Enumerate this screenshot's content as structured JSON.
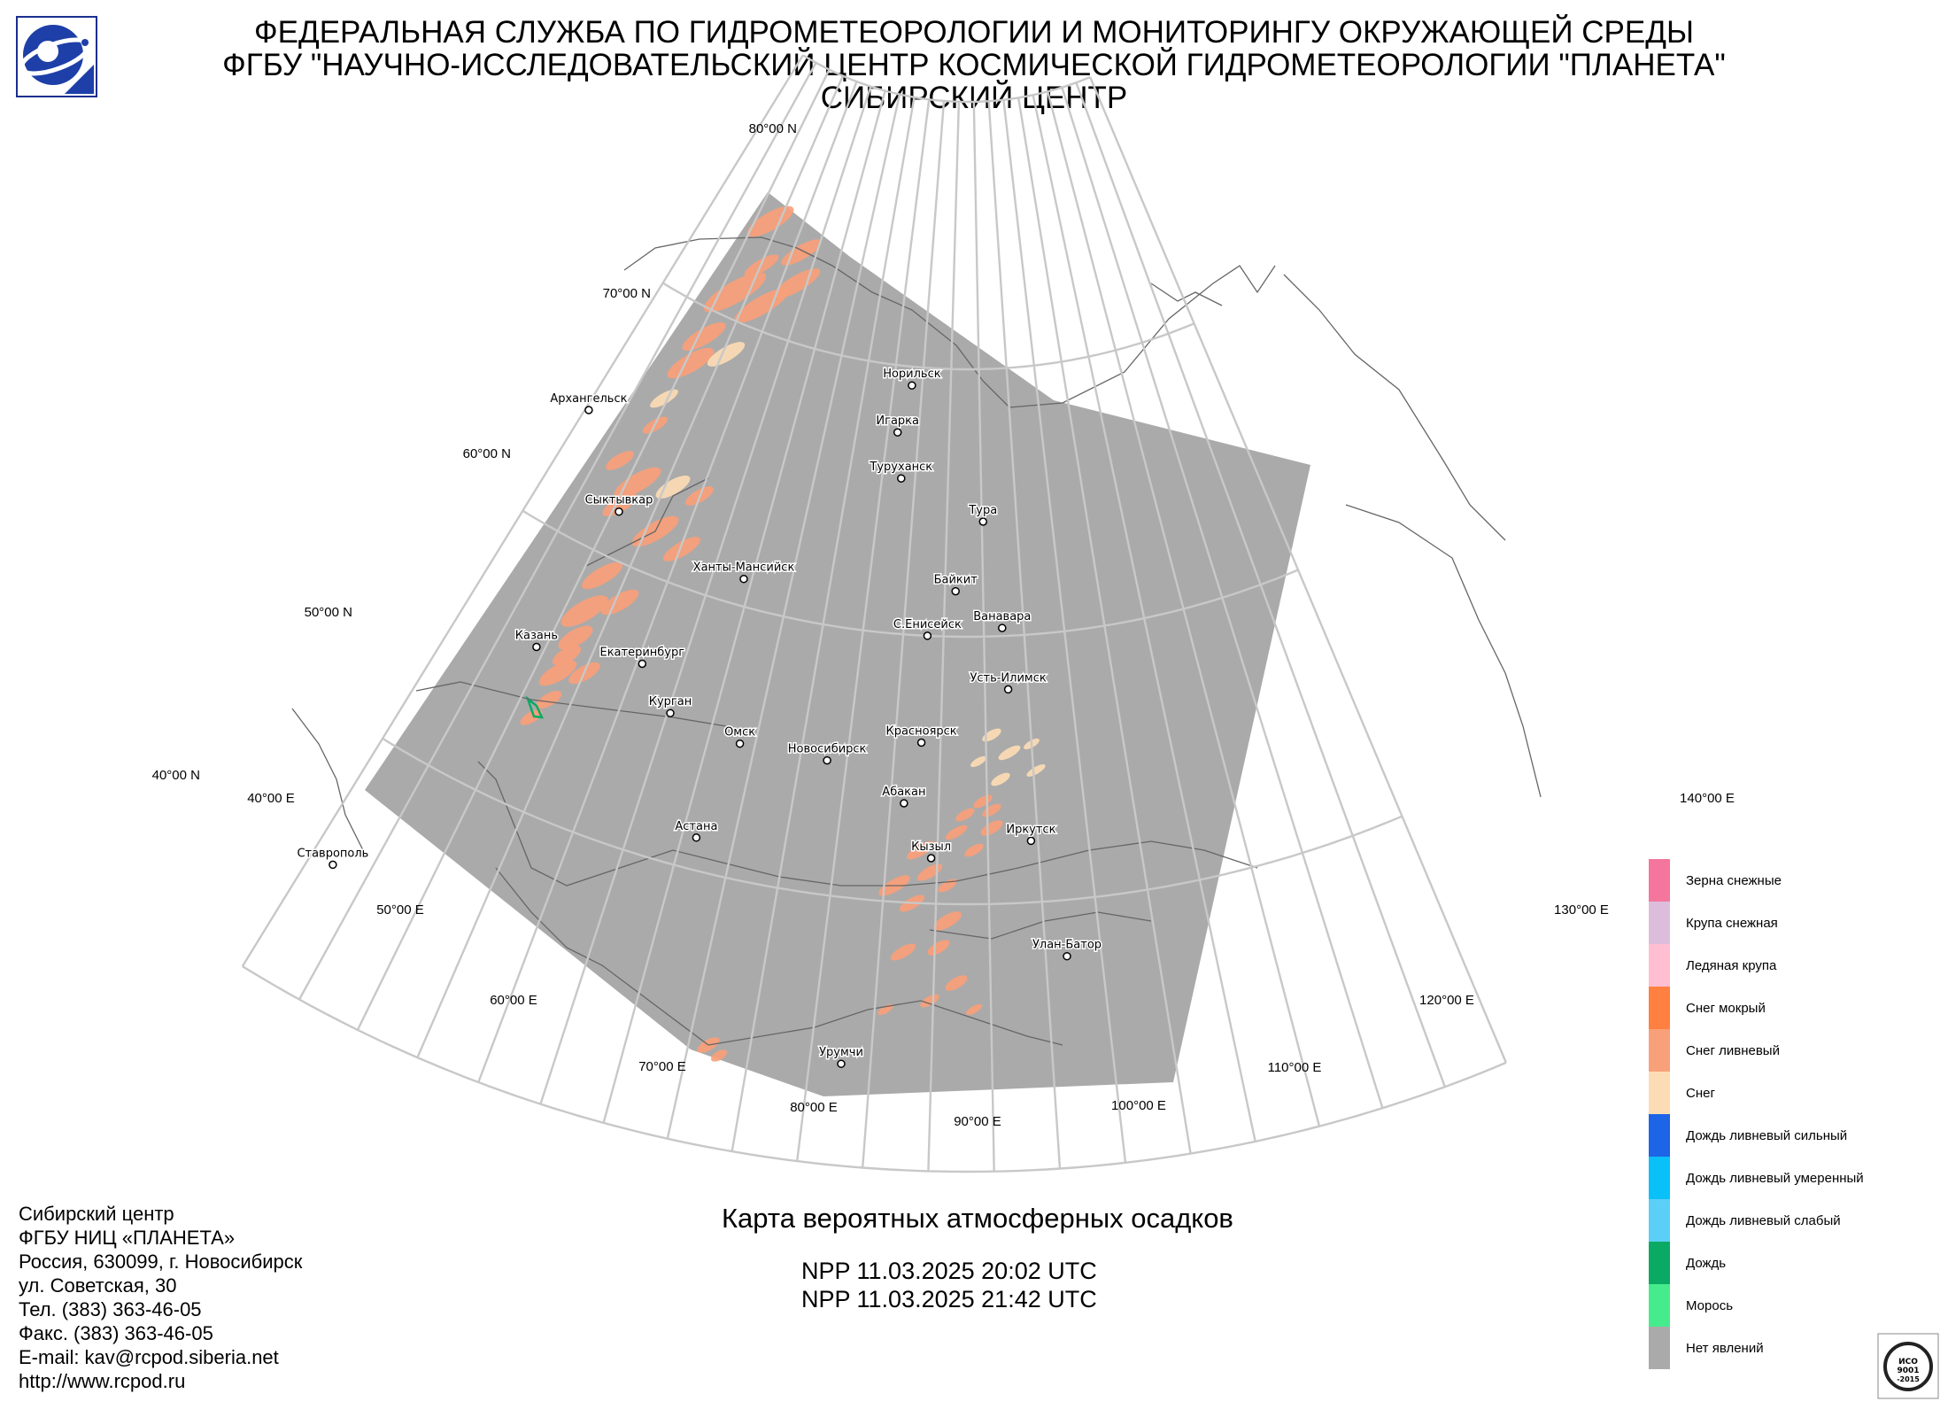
{
  "header": {
    "line1": "ФЕДЕРАЛЬНАЯ СЛУЖБА ПО ГИДРОМЕТЕОРОЛОГИИ И МОНИТОРИНГУ ОКРУЖАЮЩЕЙ СРЕДЫ",
    "line2": "ФГБУ \"НАУЧНО-ИССЛЕДОВАТЕЛЬСКИЙ ЦЕНТР КОСМИЧЕСКОЙ ГИДРОМЕТЕОРОЛОГИИ \"ПЛАНЕТА\"",
    "line3": "СИБИРСКИЙ ЦЕНТР"
  },
  "map": {
    "title": "Карта вероятных атмосферных осадков",
    "passes": [
      "NPP 11.03.2025  20:02 UTC",
      "NPP 11.03.2025  21:42 UTC"
    ],
    "lat_labels": [
      "80°00 N",
      "70°00 N",
      "60°00 N",
      "50°00 N",
      "40°00 N"
    ],
    "lon_labels": [
      "40°00 E",
      "50°00 E",
      "60°00 E",
      "70°00 E",
      "80°00 E",
      "90°00 E",
      "100°00 E",
      "110°00 E",
      "120°00 E",
      "130°00 E",
      "140°00 E"
    ],
    "cities": [
      {
        "name": "Архангельск",
        "lon": 40.5,
        "lat": 64.5
      },
      {
        "name": "Сыктывкар",
        "lon": 50.8,
        "lat": 61.7
      },
      {
        "name": "Казань",
        "lon": 49.1,
        "lat": 55.8
      },
      {
        "name": "Ставрополь",
        "lon": 42.0,
        "lat": 45.0
      },
      {
        "name": "Екатеринбург",
        "lon": 60.6,
        "lat": 56.8
      },
      {
        "name": "Ханты-Мансийск",
        "lon": 69.0,
        "lat": 61.0
      },
      {
        "name": "Курган",
        "lon": 65.3,
        "lat": 55.4
      },
      {
        "name": "Омск",
        "lon": 73.4,
        "lat": 55.0
      },
      {
        "name": "Астана",
        "lon": 71.4,
        "lat": 51.2
      },
      {
        "name": "Новосибирск",
        "lon": 82.9,
        "lat": 55.0
      },
      {
        "name": "Норильск",
        "lon": 88.2,
        "lat": 69.3
      },
      {
        "name": "Игарка",
        "lon": 86.6,
        "lat": 67.5
      },
      {
        "name": "Туруханск",
        "lon": 87.9,
        "lat": 65.8
      },
      {
        "name": "Тура",
        "lon": 100.2,
        "lat": 64.3
      },
      {
        "name": "Байкит",
        "lon": 96.4,
        "lat": 61.7
      },
      {
        "name": "Ванавара",
        "lon": 102.3,
        "lat": 60.3
      },
      {
        "name": "С.Енисейск",
        "lon": 93.0,
        "lat": 60.0
      },
      {
        "name": "Усть-Илимск",
        "lon": 102.7,
        "lat": 58.0
      },
      {
        "name": "Красноярск",
        "lon": 92.9,
        "lat": 56.0
      },
      {
        "name": "Абакан",
        "lon": 91.4,
        "lat": 53.7
      },
      {
        "name": "Кызыл",
        "lon": 94.4,
        "lat": 51.7
      },
      {
        "name": "Иркутск",
        "lon": 104.3,
        "lat": 52.3
      },
      {
        "name": "Улан-Батор",
        "lon": 106.9,
        "lat": 47.9
      },
      {
        "name": "Урумчи",
        "lon": 87.6,
        "lat": 43.8
      }
    ]
  },
  "legend": [
    {
      "label": "Зерна снежные",
      "color": "#f4769c"
    },
    {
      "label": "Крупа снежная",
      "color": "#dcbedc"
    },
    {
      "label": "Ледяная крупа",
      "color": "#ffbed2"
    },
    {
      "label": "Снег мокрый",
      "color": "#ff8040"
    },
    {
      "label": "Снег ливневый",
      "color": "#f8a07a"
    },
    {
      "label": "Снег",
      "color": "#fcdcb4"
    },
    {
      "label": "Дождь ливневый сильный",
      "color": "#1e64e6"
    },
    {
      "label": "Дождь ливневый умеренный",
      "color": "#0ac0f8"
    },
    {
      "label": "Дождь ливневый слабый",
      "color": "#5ccff8"
    },
    {
      "label": "Дождь",
      "color": "#0aaa64"
    },
    {
      "label": "Морось",
      "color": "#46ec8c"
    },
    {
      "label": "Нет явлений",
      "color": "#aaaaaa"
    }
  ],
  "org": {
    "lines": [
      "Сибирский центр",
      "ФГБУ НИЦ «ПЛАНЕТА»",
      "Россия, 630099, г. Новосибирск",
      "ул. Советская, 30",
      "Тел. (383) 363-46-05",
      "Факс. (383) 363-46-05",
      "E-mail: kav@rcpod.siberia.net",
      "http://www.rcpod.ru"
    ]
  },
  "iso": {
    "text": "ИСО 9001 -2015"
  },
  "colors": {
    "coverage": "#aaaaaa",
    "graticule": "#c8c8c8",
    "coast": "#666666"
  }
}
